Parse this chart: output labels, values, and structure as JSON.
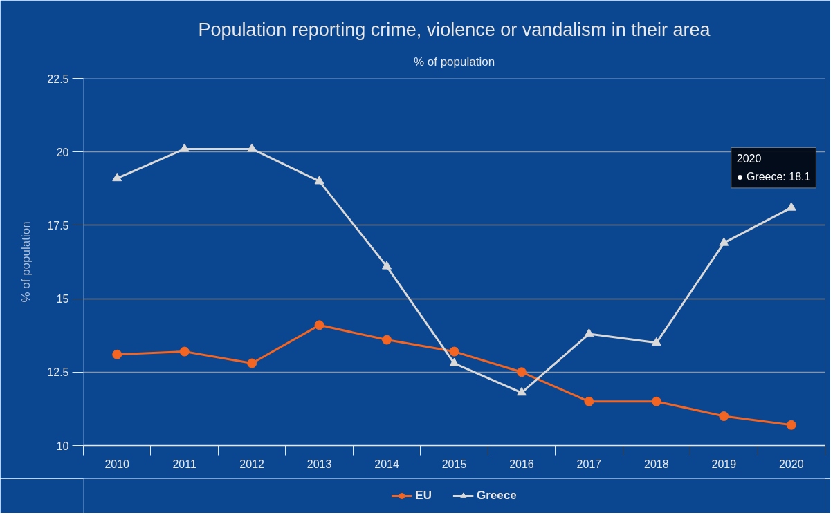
{
  "chart_data": {
    "type": "line",
    "title": "Population reporting crime, violence or vandalism in their area",
    "subtitle": "% of population",
    "ylabel": "% of population",
    "categories": [
      "2010",
      "2011",
      "2012",
      "2013",
      "2014",
      "2015",
      "2016",
      "2017",
      "2018",
      "2019",
      "2020"
    ],
    "series": [
      {
        "name": "EU",
        "color": "#f26522",
        "marker": "circle",
        "values": [
          13.1,
          13.2,
          12.8,
          14.1,
          13.6,
          13.2,
          12.5,
          11.5,
          11.5,
          11.0,
          10.7
        ]
      },
      {
        "name": "Greece",
        "color": "#d9d9d9",
        "marker": "triangle",
        "values": [
          19.1,
          20.1,
          20.1,
          19.0,
          16.1,
          12.8,
          11.8,
          13.8,
          13.5,
          16.9,
          18.1
        ]
      }
    ],
    "ylim": [
      10,
      22.5
    ],
    "yticks": [
      10,
      12.5,
      15,
      17.5,
      20,
      22.5
    ],
    "grid": "y",
    "legend": "bottom",
    "line_style": "solid",
    "annotations": [
      {
        "text": "2020\n● Greece: 18.1",
        "x": "2020",
        "y": 18.1
      }
    ]
  }
}
